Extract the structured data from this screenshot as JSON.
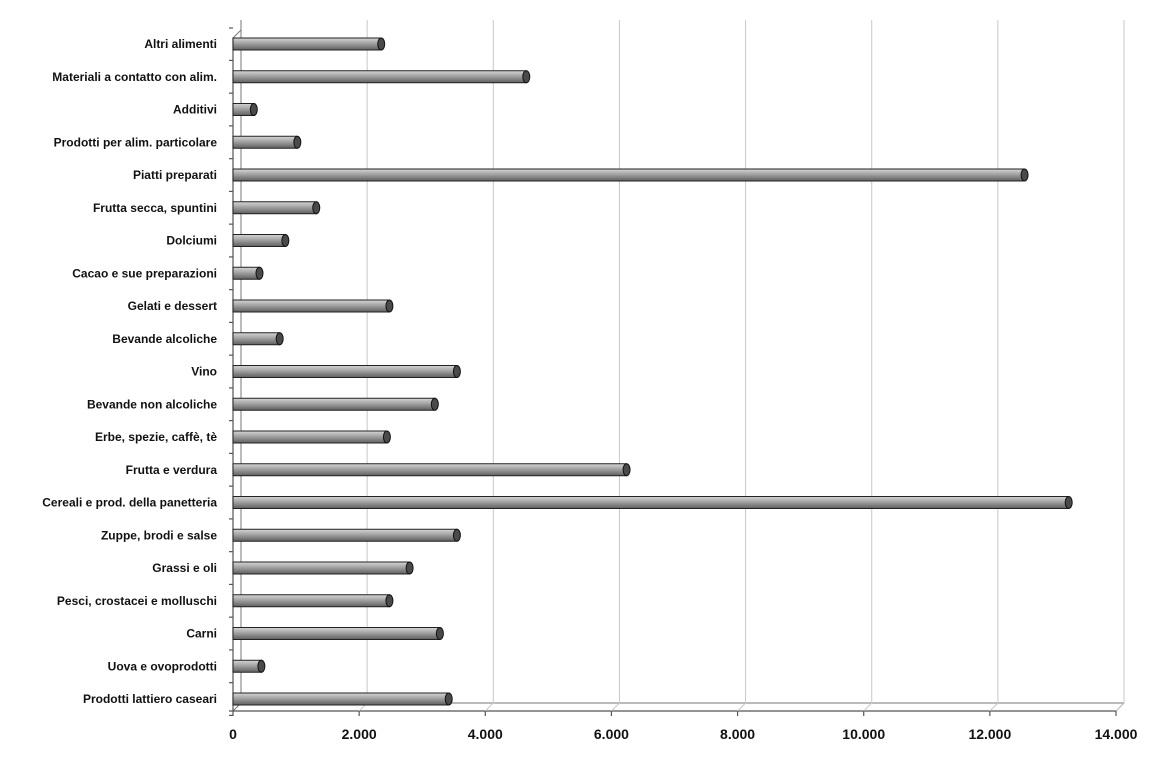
{
  "chart_data": {
    "type": "bar",
    "orientation": "horizontal",
    "categories": [
      "Altri alimenti",
      "Materiali a contatto con alim.",
      "Additivi",
      "Prodotti per alim. particolare",
      "Piatti preparati",
      "Frutta secca, spuntini",
      "Dolciumi",
      "Cacao e sue preparazioni",
      "Gelati e dessert",
      "Bevande alcoliche",
      "Vino",
      "Bevande non alcoliche",
      "Erbe, spezie, caffè, tè",
      "Frutta e verdura",
      "Cereali e prod. della panetteria",
      "Zuppe, brodi e salse",
      "Grassi e oli",
      "Pesci, crostacei e molluschi",
      "Carni",
      "Uova e ovoprodotti",
      "Prodotti lattiero caseari"
    ],
    "values": [
      2350,
      4650,
      330,
      1020,
      12550,
      1320,
      830,
      420,
      2480,
      740,
      3550,
      3200,
      2440,
      6240,
      13250,
      3550,
      2800,
      2480,
      3280,
      450,
      3420
    ],
    "xlim": [
      0,
      14000
    ],
    "xticks": [
      0,
      2000,
      4000,
      6000,
      8000,
      10000,
      12000,
      14000
    ],
    "xtick_labels": [
      "0",
      "2.000",
      "4.000",
      "6.000",
      "8.000",
      "10.000",
      "12.000",
      "14.000"
    ],
    "grid": true,
    "colors": {
      "bar": "#9a9a9a",
      "bar_dark": "#4a4a4a",
      "bar_light": "#d4d4d4"
    }
  }
}
